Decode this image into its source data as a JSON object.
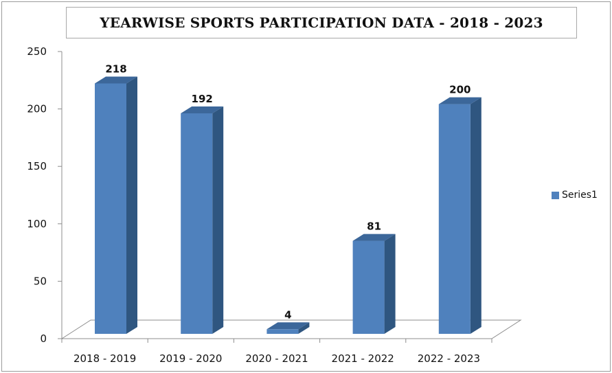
{
  "chart_data": {
    "type": "bar",
    "title": "YEARWISE SPORTS PARTICIPATION DATA - 2018 - 2023",
    "categories": [
      "2018 - 2019",
      "2019 - 2020",
      "2020 - 2021",
      "2021 - 2022",
      "2022 - 2023"
    ],
    "series": [
      {
        "name": "Series1",
        "values": [
          218,
          192,
          4,
          81,
          200
        ],
        "color": "#4f81bd"
      }
    ],
    "ylim": [
      0,
      250
    ],
    "yticks": [
      0,
      50,
      100,
      150,
      200,
      250
    ],
    "xlabel": "",
    "ylabel": "",
    "grid": false,
    "legend_position": "right",
    "style": "3d-column"
  }
}
